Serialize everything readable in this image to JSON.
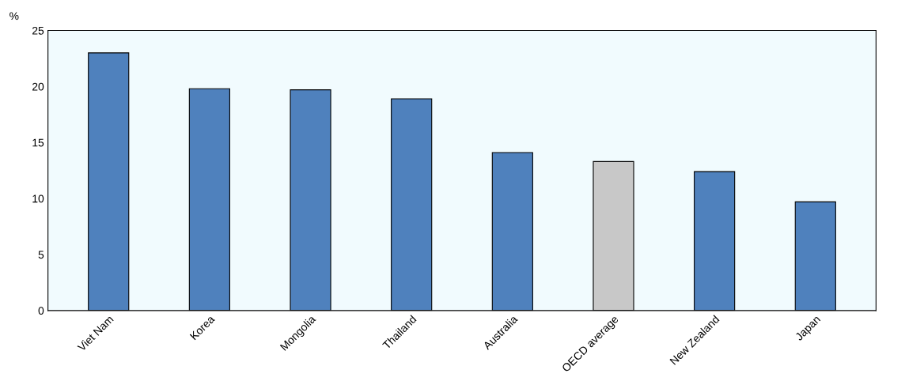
{
  "chart_data": {
    "type": "bar",
    "ylabel": "%",
    "categories": [
      "Viet Nam",
      "Korea",
      "Mongolia",
      "Thailand",
      "Australia",
      "OECD average",
      "New Zealand",
      "Japan"
    ],
    "values": [
      23.0,
      19.8,
      19.7,
      18.9,
      14.1,
      13.3,
      12.4,
      9.7
    ],
    "colors": [
      "#4f81bd",
      "#4f81bd",
      "#4f81bd",
      "#4f81bd",
      "#4f81bd",
      "#c8c8c8",
      "#4f81bd",
      "#4f81bd"
    ],
    "ylim": [
      0,
      25
    ],
    "yticks": [
      0,
      5,
      10,
      15,
      20,
      25
    ],
    "grid": false,
    "legend": false
  }
}
